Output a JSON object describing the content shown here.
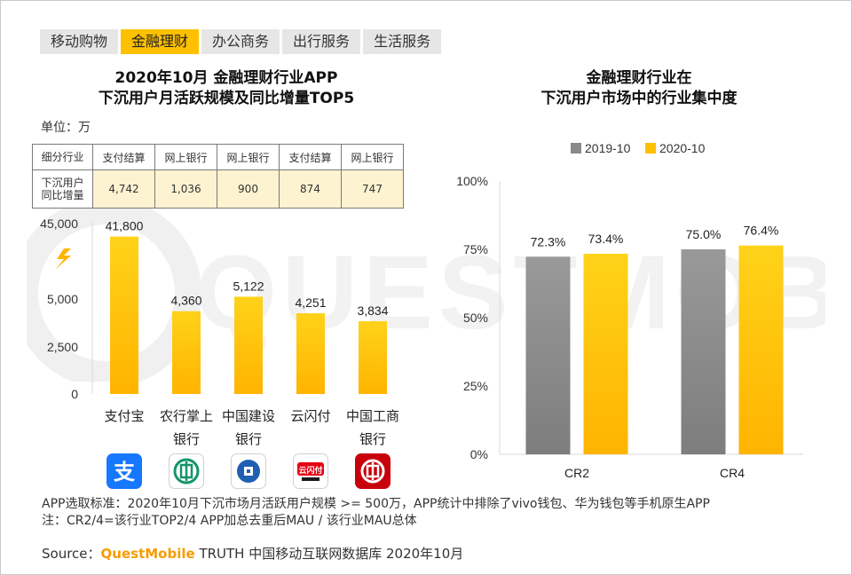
{
  "tabs": [
    "移动购物",
    "金融理财",
    "办公商务",
    "出行服务",
    "生活服务"
  ],
  "active_tab": 1,
  "chart_data": [
    {
      "type": "bar",
      "title": "2020年10月 金融理财行业APP 下沉用户月活跃规模及同比增量TOP5",
      "title_lines": [
        "2020年10月 金融理财行业APP",
        "下沉用户月活跃规模及同比增量TOP5"
      ],
      "unit_label": "单位：万",
      "categories": [
        "支付宝",
        "农行掌上银行",
        "中国建设银行",
        "云闪付",
        "中国工商银行"
      ],
      "category_lines": [
        [
          "支付宝"
        ],
        [
          "农行掌上",
          "银行"
        ],
        [
          "中国建设",
          "银行"
        ],
        [
          "云闪付"
        ],
        [
          "中国工商",
          "银行"
        ]
      ],
      "values": [
        41800,
        4360,
        5122,
        4251,
        3834
      ],
      "value_labels": [
        "41,800",
        "4,360",
        "5,122",
        "4,251",
        "3,834"
      ],
      "y_ticks": [
        "0",
        "2,500",
        "5,000",
        "45,000"
      ],
      "axis_break": true,
      "table": {
        "row1_header": "细分行业",
        "row1": [
          "支付结算",
          "网上银行",
          "网上银行",
          "支付结算",
          "网上银行"
        ],
        "row2_header_lines": [
          "下沉用户",
          "同比增量"
        ],
        "row2": [
          "4,742",
          "1,036",
          "900",
          "874",
          "747"
        ]
      },
      "bar_color": "#ffc000"
    },
    {
      "type": "bar",
      "title": "金融理财行业在 下沉用户市场中的行业集中度",
      "title_lines": [
        "金融理财行业在",
        "下沉用户市场中的行业集中度"
      ],
      "categories": [
        "CR2",
        "CR4"
      ],
      "series": [
        {
          "name": "2019-10",
          "values": [
            72.3,
            75.0
          ],
          "labels": [
            "72.3%",
            "75.0%"
          ],
          "color": "#8a8a8a"
        },
        {
          "name": "2020-10",
          "values": [
            73.4,
            76.4
          ],
          "labels": [
            "73.4%",
            "76.4%"
          ],
          "color": "#ffc000"
        }
      ],
      "y_ticks": [
        "0%",
        "25%",
        "50%",
        "75%",
        "100%"
      ],
      "ylim": [
        0,
        100
      ],
      "legend": "top"
    }
  ],
  "notes": {
    "line1": "APP选取标准：2020年10月下沉市场月活跃用户规模 >= 500万，APP统计中排除了vivo钱包、华为钱包等手机原生APP",
    "line2": "注：CR2/4=该行业TOP2/4 APP加总去重后MAU / 该行业MAU总体"
  },
  "source": {
    "prefix": "Source：",
    "brand": "QuestMobile",
    "rest": " TRUTH 中国移动互联网数据库 2020年10月"
  },
  "watermark_text": "QUESTMOBILE",
  "app_icons": [
    {
      "name": "alipay-icon",
      "glyph": "支"
    },
    {
      "name": "abc-bank-icon",
      "glyph": ""
    },
    {
      "name": "ccb-icon",
      "glyph": ""
    },
    {
      "name": "unionpay-cloud-icon",
      "glyph": "云闪付"
    },
    {
      "name": "icbc-icon",
      "glyph": ""
    }
  ]
}
